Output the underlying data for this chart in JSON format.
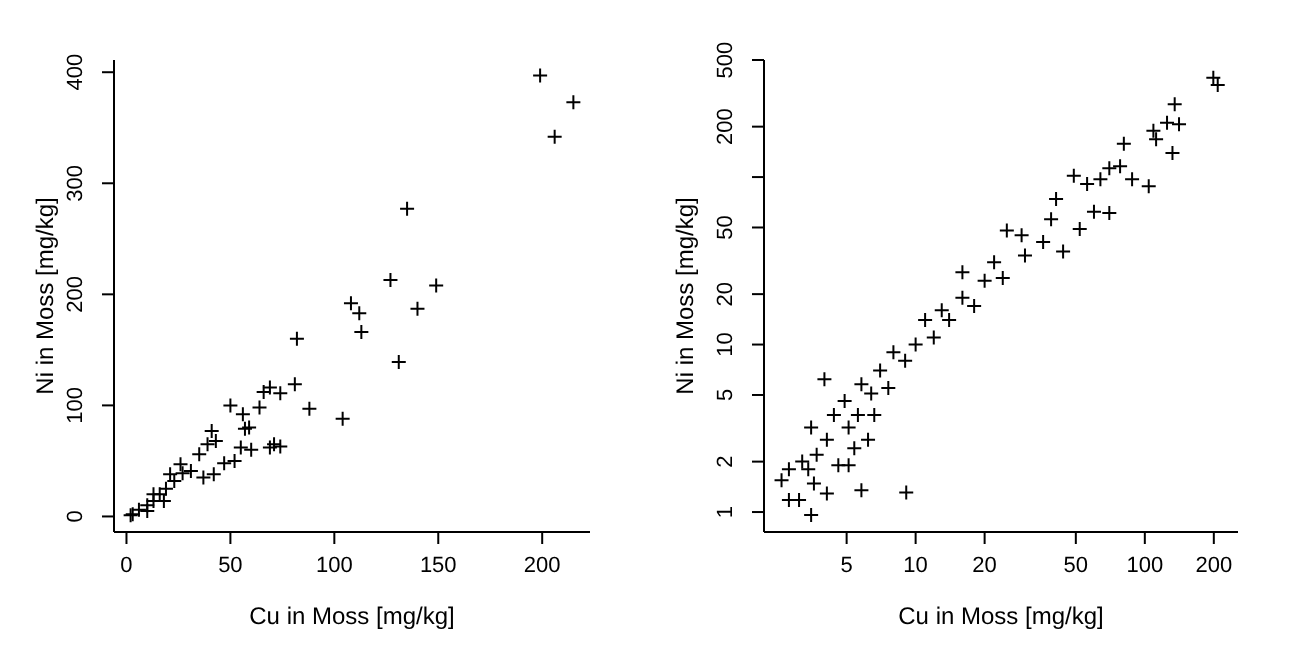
{
  "chart_data": [
    {
      "type": "scatter",
      "xlabel": "Cu in Moss [mg/kg]",
      "ylabel": "Ni in Moss [mg/kg]",
      "marker": "cross",
      "grid": false,
      "legend": false,
      "xlim": [
        -6,
        223
      ],
      "ylim": [
        -14,
        411
      ],
      "xticks": [
        0,
        50,
        100,
        150,
        200
      ],
      "yticks": [
        0,
        100,
        200,
        300,
        400
      ],
      "x": [
        199,
        215,
        206,
        135,
        127,
        149,
        108,
        112,
        113,
        140,
        131,
        82,
        104,
        88,
        81,
        74,
        69,
        66,
        64,
        50,
        56,
        59,
        57,
        71,
        69,
        74,
        55,
        60,
        41,
        43,
        39,
        35,
        52,
        47,
        42,
        26,
        27,
        31,
        37,
        23,
        19,
        16,
        13,
        10,
        6,
        3,
        2,
        21,
        13,
        18,
        10
      ],
      "series": [
        {
          "color": "#000000",
          "values": [
            397,
            373,
            342,
            277,
            213,
            208,
            192,
            183,
            166,
            187,
            139,
            160,
            88,
            97,
            119,
            111,
            116,
            112,
            98,
            100,
            92,
            80,
            79,
            65,
            62,
            63,
            62,
            60,
            77,
            68,
            65,
            56,
            50,
            48,
            38,
            47,
            39,
            41,
            35,
            32,
            25,
            20,
            14,
            10,
            6,
            2,
            1,
            38,
            20,
            14,
            5
          ]
        }
      ]
    },
    {
      "type": "scatter",
      "xlabel": "Cu in Moss [mg/kg]",
      "ylabel": "Ni in Moss [mg/kg]",
      "marker": "cross",
      "grid": false,
      "legend": false,
      "log": "xy",
      "xlim": [
        2.18,
        255
      ],
      "ylim": [
        0.76,
        500
      ],
      "xticks": [
        5,
        10,
        20,
        50,
        100,
        200
      ],
      "yticks": [
        1,
        2,
        5,
        10,
        20,
        50,
        {
          "value": 100,
          "label": null
        },
        200,
        500
      ],
      "x": [
        199,
        208,
        135,
        125,
        141,
        109,
        112,
        132,
        104,
        88,
        81,
        78,
        70,
        64,
        49,
        56,
        70,
        60,
        52,
        41,
        39,
        36,
        44,
        29,
        25,
        30,
        22,
        24,
        20,
        16,
        16,
        18,
        13,
        14,
        11,
        12,
        10,
        9,
        8,
        7,
        7.6,
        6.4,
        5.6,
        5.8,
        4.9,
        5.1,
        4.4,
        4.0,
        4.1,
        3.7,
        4.6,
        3.5,
        3.4,
        5.8,
        9.1,
        3.5,
        3.1,
        2.8,
        2.6,
        2.8,
        3.2,
        3.6,
        4.1,
        5.1,
        5.4,
        6.2,
        6.6
      ],
      "series": [
        {
          "color": "#000000",
          "values": [
            392,
            354,
            272,
            211,
            207,
            189,
            168,
            139,
            88,
            97,
            158,
            116,
            113,
            97,
            102,
            91,
            61,
            62,
            49,
            74,
            56,
            41,
            36,
            45,
            48,
            34,
            31,
            25,
            24,
            27,
            19,
            17,
            16,
            14,
            14,
            11,
            10,
            8,
            9,
            7,
            5.5,
            5.1,
            3.8,
            5.8,
            4.6,
            3.2,
            3.8,
            6.2,
            2.7,
            2.2,
            1.9,
            3.2,
            1.8,
            1.35,
            1.31,
            0.96,
            1.18,
            1.18,
            1.55,
            1.8,
            2.0,
            1.48,
            1.29,
            1.9,
            2.4,
            2.7,
            3.8
          ]
        }
      ]
    }
  ]
}
